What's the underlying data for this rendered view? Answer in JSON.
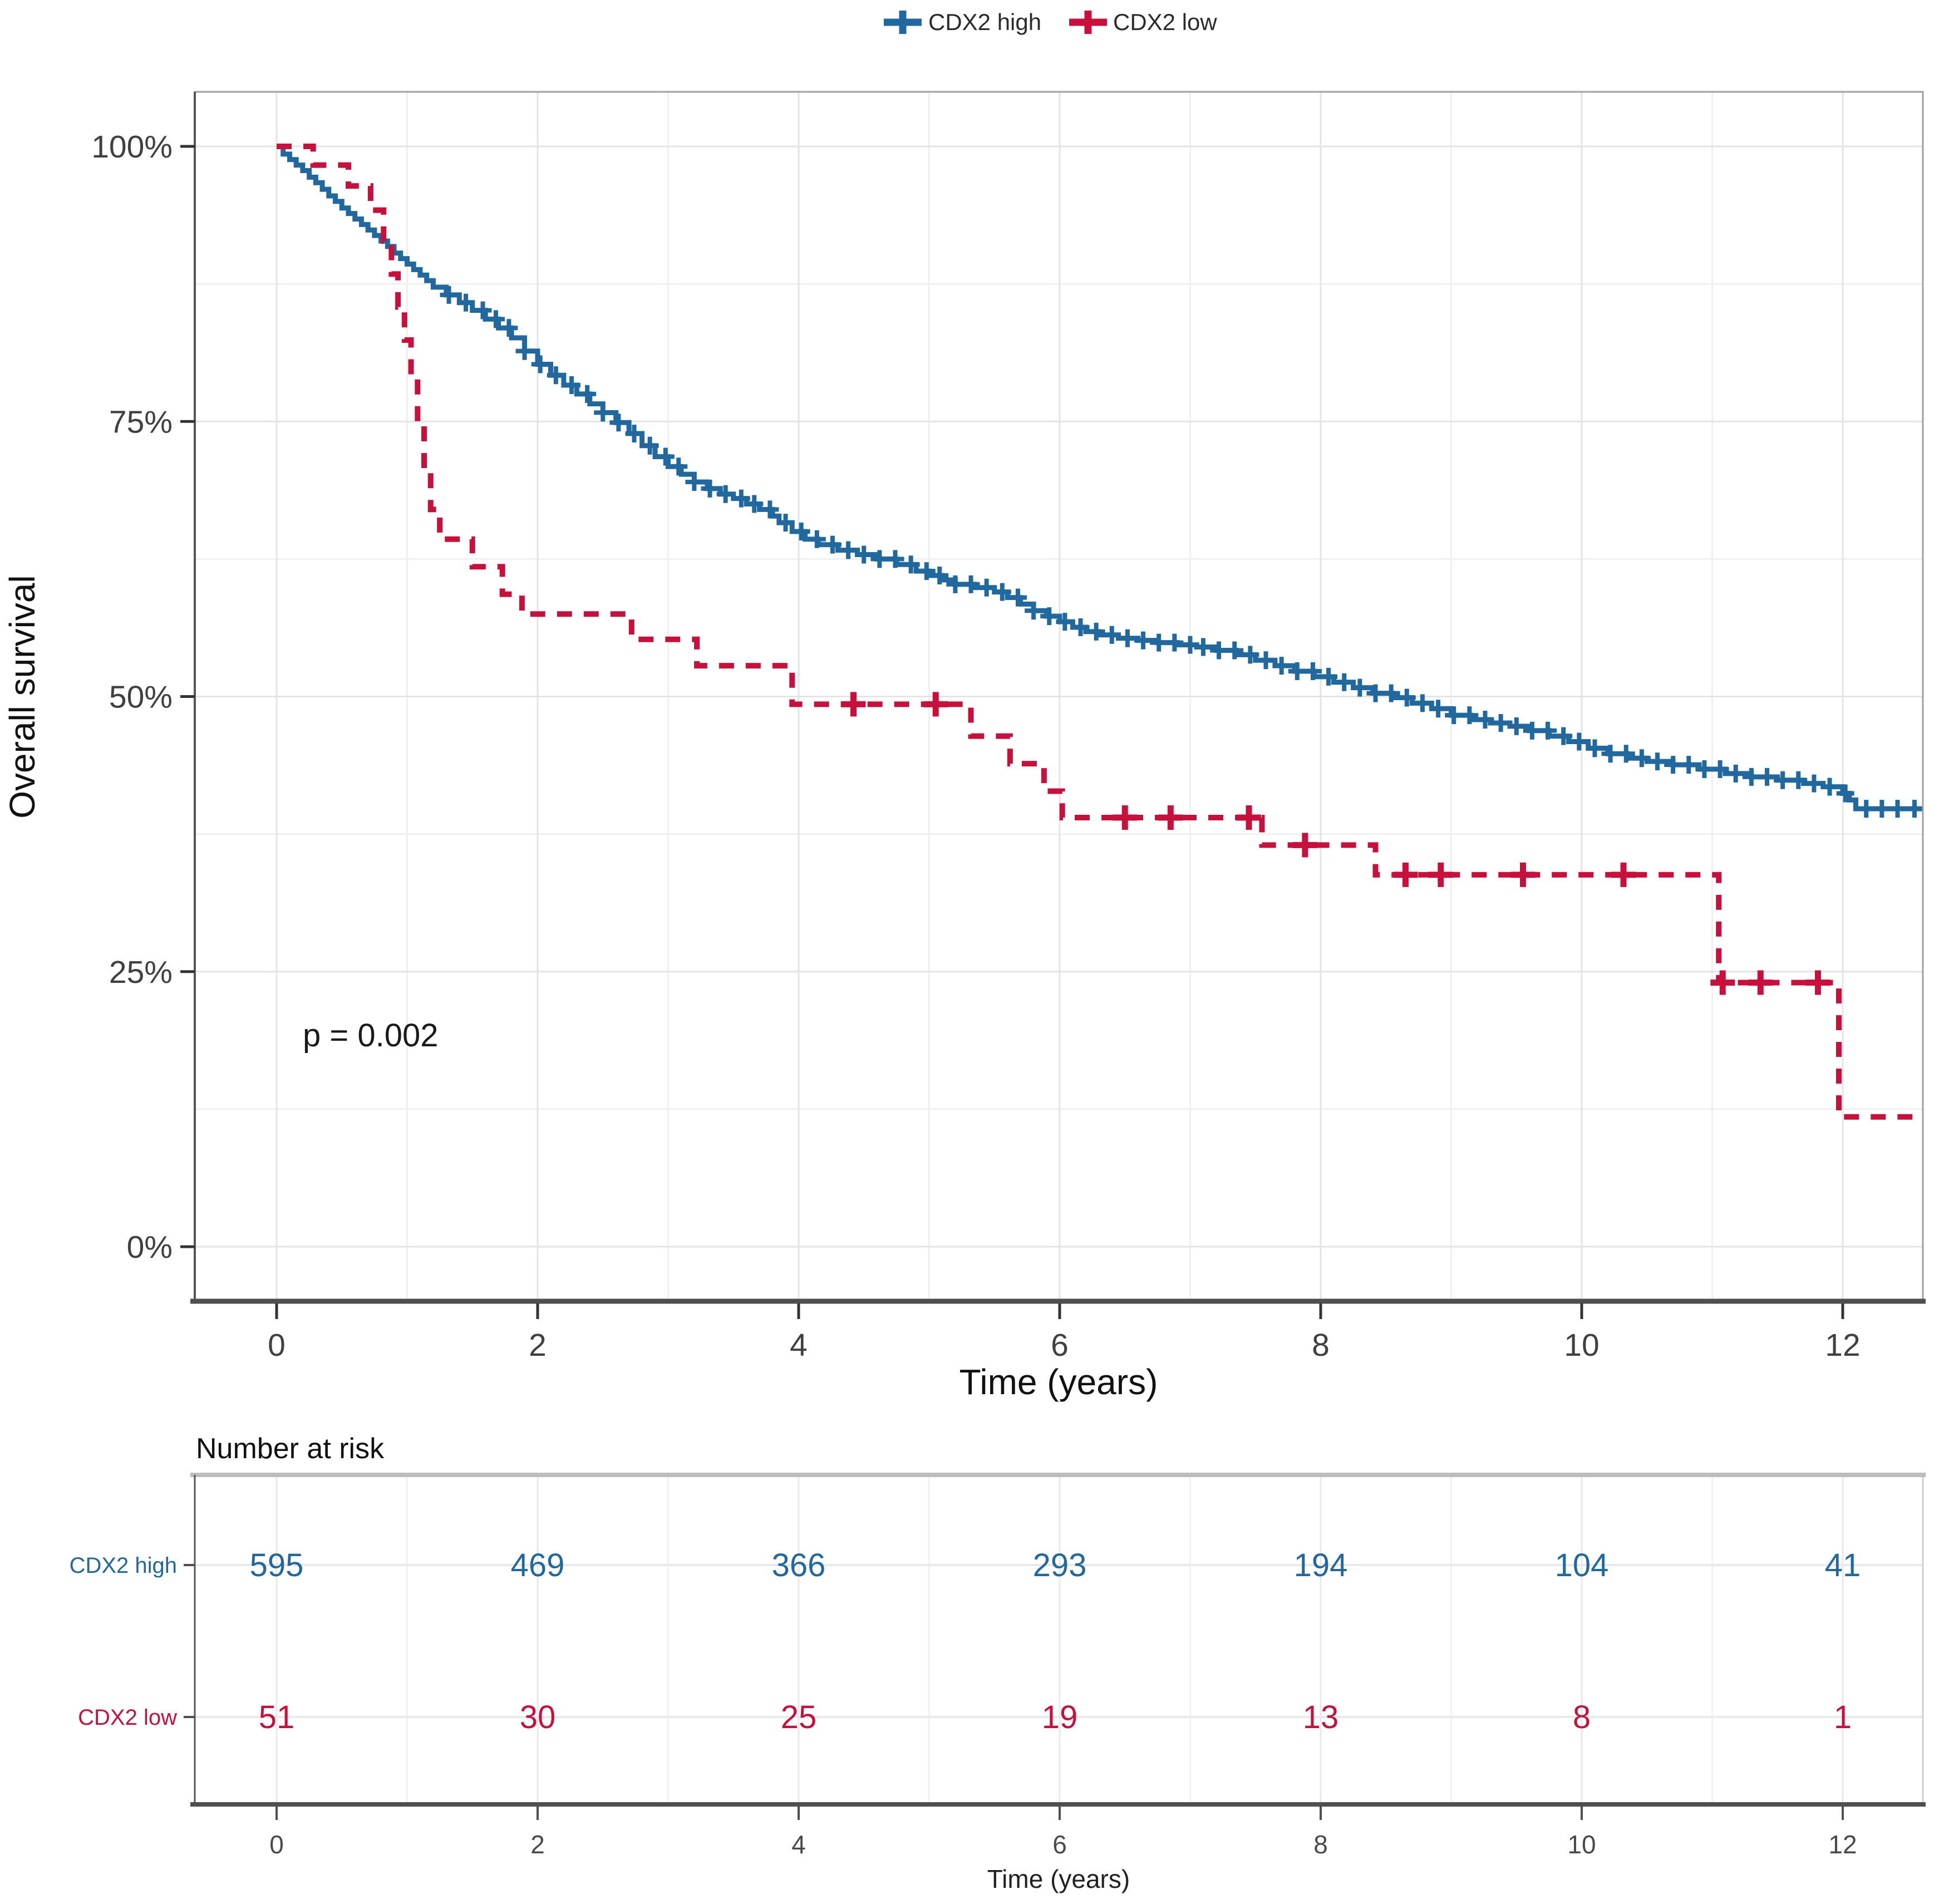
{
  "legend": {
    "items": [
      {
        "label": "CDX2 high",
        "color": "#21689e"
      },
      {
        "label": "CDX2 low",
        "color": "#c8103c"
      }
    ]
  },
  "chart_data": {
    "type": "line",
    "subtype": "kaplan-meier-step",
    "title": "",
    "xlabel": "Time (years)",
    "ylabel": "Overall survival",
    "xlim": [
      -0.63,
      12.61
    ],
    "ylim": [
      -5,
      105
    ],
    "grid": true,
    "legend_position": "top-center",
    "x_ticks": [
      0,
      2,
      4,
      6,
      8,
      10,
      12
    ],
    "x_minor_ticks": [
      1,
      3,
      5,
      7,
      9,
      11
    ],
    "y_ticks": [
      {
        "value": 0,
        "label": "0%"
      },
      {
        "value": 25,
        "label": "25%"
      },
      {
        "value": 50,
        "label": "50%"
      },
      {
        "value": 75,
        "label": "75%"
      },
      {
        "value": 100,
        "label": "100%"
      }
    ],
    "y_minor_ticks": [
      12.5,
      37.5,
      62.5,
      87.5
    ],
    "annotation": {
      "text": "p = 0.002",
      "x": 0.2,
      "y": 18.2
    },
    "series": [
      {
        "name": "CDX2 high",
        "color": "#21689e",
        "line_style": "solid",
        "steps": [
          [
            0,
            100
          ],
          [
            0.05,
            99.3
          ],
          [
            0.1,
            98.8
          ],
          [
            0.15,
            98.3
          ],
          [
            0.2,
            97.8
          ],
          [
            0.25,
            97.2
          ],
          [
            0.3,
            96.7
          ],
          [
            0.35,
            96.1
          ],
          [
            0.4,
            95.5
          ],
          [
            0.45,
            95
          ],
          [
            0.5,
            94.4
          ],
          [
            0.55,
            93.9
          ],
          [
            0.6,
            93.4
          ],
          [
            0.65,
            92.9
          ],
          [
            0.7,
            92.4
          ],
          [
            0.75,
            91.9
          ],
          [
            0.8,
            91.4
          ],
          [
            0.85,
            90.9
          ],
          [
            0.9,
            90.3
          ],
          [
            0.95,
            89.8
          ],
          [
            1,
            89.3
          ],
          [
            1.05,
            88.8
          ],
          [
            1.1,
            88.3
          ],
          [
            1.15,
            87.8
          ],
          [
            1.2,
            87.2
          ],
          [
            1.3,
            86.5
          ],
          [
            1.4,
            85.8
          ],
          [
            1.5,
            85.1
          ],
          [
            1.6,
            84.3
          ],
          [
            1.7,
            83.5
          ],
          [
            1.8,
            82.6
          ],
          [
            1.9,
            81.4
          ],
          [
            2,
            80.2
          ],
          [
            2.1,
            79.2
          ],
          [
            2.2,
            78.3
          ],
          [
            2.3,
            77.5
          ],
          [
            2.4,
            76.6
          ],
          [
            2.5,
            75.8
          ],
          [
            2.6,
            74.9
          ],
          [
            2.7,
            73.9
          ],
          [
            2.8,
            72.8
          ],
          [
            2.9,
            71.8
          ],
          [
            3,
            70.9
          ],
          [
            3.1,
            70.2
          ],
          [
            3.2,
            69.5
          ],
          [
            3.3,
            68.9
          ],
          [
            3.4,
            68.4
          ],
          [
            3.5,
            68
          ],
          [
            3.6,
            67.5
          ],
          [
            3.7,
            67
          ],
          [
            3.8,
            66.4
          ],
          [
            3.85,
            65.8
          ],
          [
            3.95,
            65
          ],
          [
            4.05,
            64.3
          ],
          [
            4.15,
            63.8
          ],
          [
            4.3,
            63.3
          ],
          [
            4.45,
            62.9
          ],
          [
            4.6,
            62.5
          ],
          [
            4.75,
            62
          ],
          [
            4.9,
            61.4
          ],
          [
            5,
            61
          ],
          [
            5.1,
            60.6
          ],
          [
            5.2,
            60.2
          ],
          [
            5.35,
            59.9
          ],
          [
            5.5,
            59.5
          ],
          [
            5.6,
            59
          ],
          [
            5.7,
            58.4
          ],
          [
            5.8,
            57.8
          ],
          [
            5.9,
            57.3
          ],
          [
            6,
            56.8
          ],
          [
            6.1,
            56.3
          ],
          [
            6.2,
            55.9
          ],
          [
            6.3,
            55.6
          ],
          [
            6.45,
            55.3
          ],
          [
            6.6,
            55.1
          ],
          [
            6.75,
            54.9
          ],
          [
            6.9,
            54.7
          ],
          [
            7.05,
            54.5
          ],
          [
            7.2,
            54.2
          ],
          [
            7.35,
            53.8
          ],
          [
            7.5,
            53.3
          ],
          [
            7.65,
            52.8
          ],
          [
            7.8,
            52.3
          ],
          [
            7.95,
            51.8
          ],
          [
            8.1,
            51.3
          ],
          [
            8.25,
            50.8
          ],
          [
            8.4,
            50.3
          ],
          [
            8.55,
            49.9
          ],
          [
            8.7,
            49.4
          ],
          [
            8.85,
            48.9
          ],
          [
            9,
            48.3
          ],
          [
            9.15,
            47.9
          ],
          [
            9.3,
            47.6
          ],
          [
            9.45,
            47.3
          ],
          [
            9.6,
            46.9
          ],
          [
            9.75,
            46.4
          ],
          [
            9.9,
            45.9
          ],
          [
            10.05,
            45.3
          ],
          [
            10.2,
            44.8
          ],
          [
            10.35,
            44.4
          ],
          [
            10.5,
            44.1
          ],
          [
            10.7,
            43.8
          ],
          [
            10.9,
            43.4
          ],
          [
            11.1,
            43
          ],
          [
            11.3,
            42.7
          ],
          [
            11.5,
            42.4
          ],
          [
            11.7,
            42.1
          ],
          [
            11.85,
            41.8
          ],
          [
            12,
            41.2
          ],
          [
            12.05,
            40.6
          ],
          [
            12.1,
            39.8
          ],
          [
            12.2,
            39.8
          ]
        ],
        "censor_times": [
          1.32,
          1.45,
          1.58,
          1.68,
          1.78,
          1.9,
          2.02,
          2.14,
          2.26,
          2.38,
          2.5,
          2.62,
          2.74,
          2.86,
          2.98,
          3.08,
          3.2,
          3.32,
          3.44,
          3.56,
          3.66,
          3.78,
          3.9,
          4.02,
          4.14,
          4.26,
          4.38,
          4.5,
          4.62,
          4.74,
          4.86,
          4.98,
          5.08,
          5.2,
          5.32,
          5.44,
          5.56,
          5.68,
          5.8,
          5.92,
          6.04,
          6.16,
          6.28,
          6.4,
          6.52,
          6.64,
          6.76,
          6.88,
          7,
          7.1,
          7.22,
          7.34,
          7.46,
          7.58,
          7.7,
          7.82,
          7.94,
          8.06,
          8.18,
          8.3,
          8.42,
          8.54,
          8.66,
          8.78,
          8.9,
          9.02,
          9.14,
          9.26,
          9.38,
          9.5,
          9.62,
          9.74,
          9.86,
          9.98,
          10.1,
          10.22,
          10.34,
          10.46,
          10.58,
          10.7,
          10.82,
          10.94,
          11.06,
          11.18,
          11.3,
          11.42,
          11.54,
          11.66,
          11.78,
          11.9,
          12.02,
          12.18,
          12.3,
          12.42,
          12.55
        ]
      },
      {
        "name": "CDX2 low",
        "color": "#c8103c",
        "line_style": "dashed",
        "steps": [
          [
            0,
            100
          ],
          [
            0.28,
            98.3
          ],
          [
            0.55,
            96.4
          ],
          [
            0.72,
            94.2
          ],
          [
            0.82,
            91.4
          ],
          [
            0.88,
            88.4
          ],
          [
            0.93,
            85.4
          ],
          [
            0.98,
            82.4
          ],
          [
            1.03,
            79
          ],
          [
            1.08,
            75
          ],
          [
            1.13,
            70.5
          ],
          [
            1.18,
            67
          ],
          [
            1.25,
            64.3
          ],
          [
            1.5,
            61.8
          ],
          [
            1.73,
            59.3
          ],
          [
            1.88,
            57.5
          ],
          [
            2.72,
            55.2
          ],
          [
            3.22,
            52.8
          ],
          [
            3.95,
            49.3
          ],
          [
            5.32,
            46.4
          ],
          [
            5.62,
            43.9
          ],
          [
            5.88,
            41.4
          ],
          [
            6.02,
            39
          ],
          [
            7.55,
            36.5
          ],
          [
            8.42,
            33.8
          ],
          [
            11.05,
            24
          ],
          [
            11.97,
            11.8
          ]
        ],
        "censor_times": [
          4.42,
          5.05,
          6.5,
          6.85,
          7.45,
          7.88,
          8.65,
          8.92,
          9.55,
          10.32,
          11.08,
          11.37,
          11.81
        ]
      }
    ]
  },
  "risk_table": {
    "title": "Number at risk",
    "xlabel": "Time (years)",
    "times": [
      0,
      2,
      4,
      6,
      8,
      10,
      12
    ],
    "rows": [
      {
        "label": "CDX2 high",
        "color": "#21689e",
        "values": [
          595,
          469,
          366,
          293,
          194,
          104,
          41
        ]
      },
      {
        "label": "CDX2 low",
        "color": "#c8103c",
        "values": [
          51,
          30,
          25,
          19,
          13,
          8,
          1
        ]
      }
    ]
  }
}
